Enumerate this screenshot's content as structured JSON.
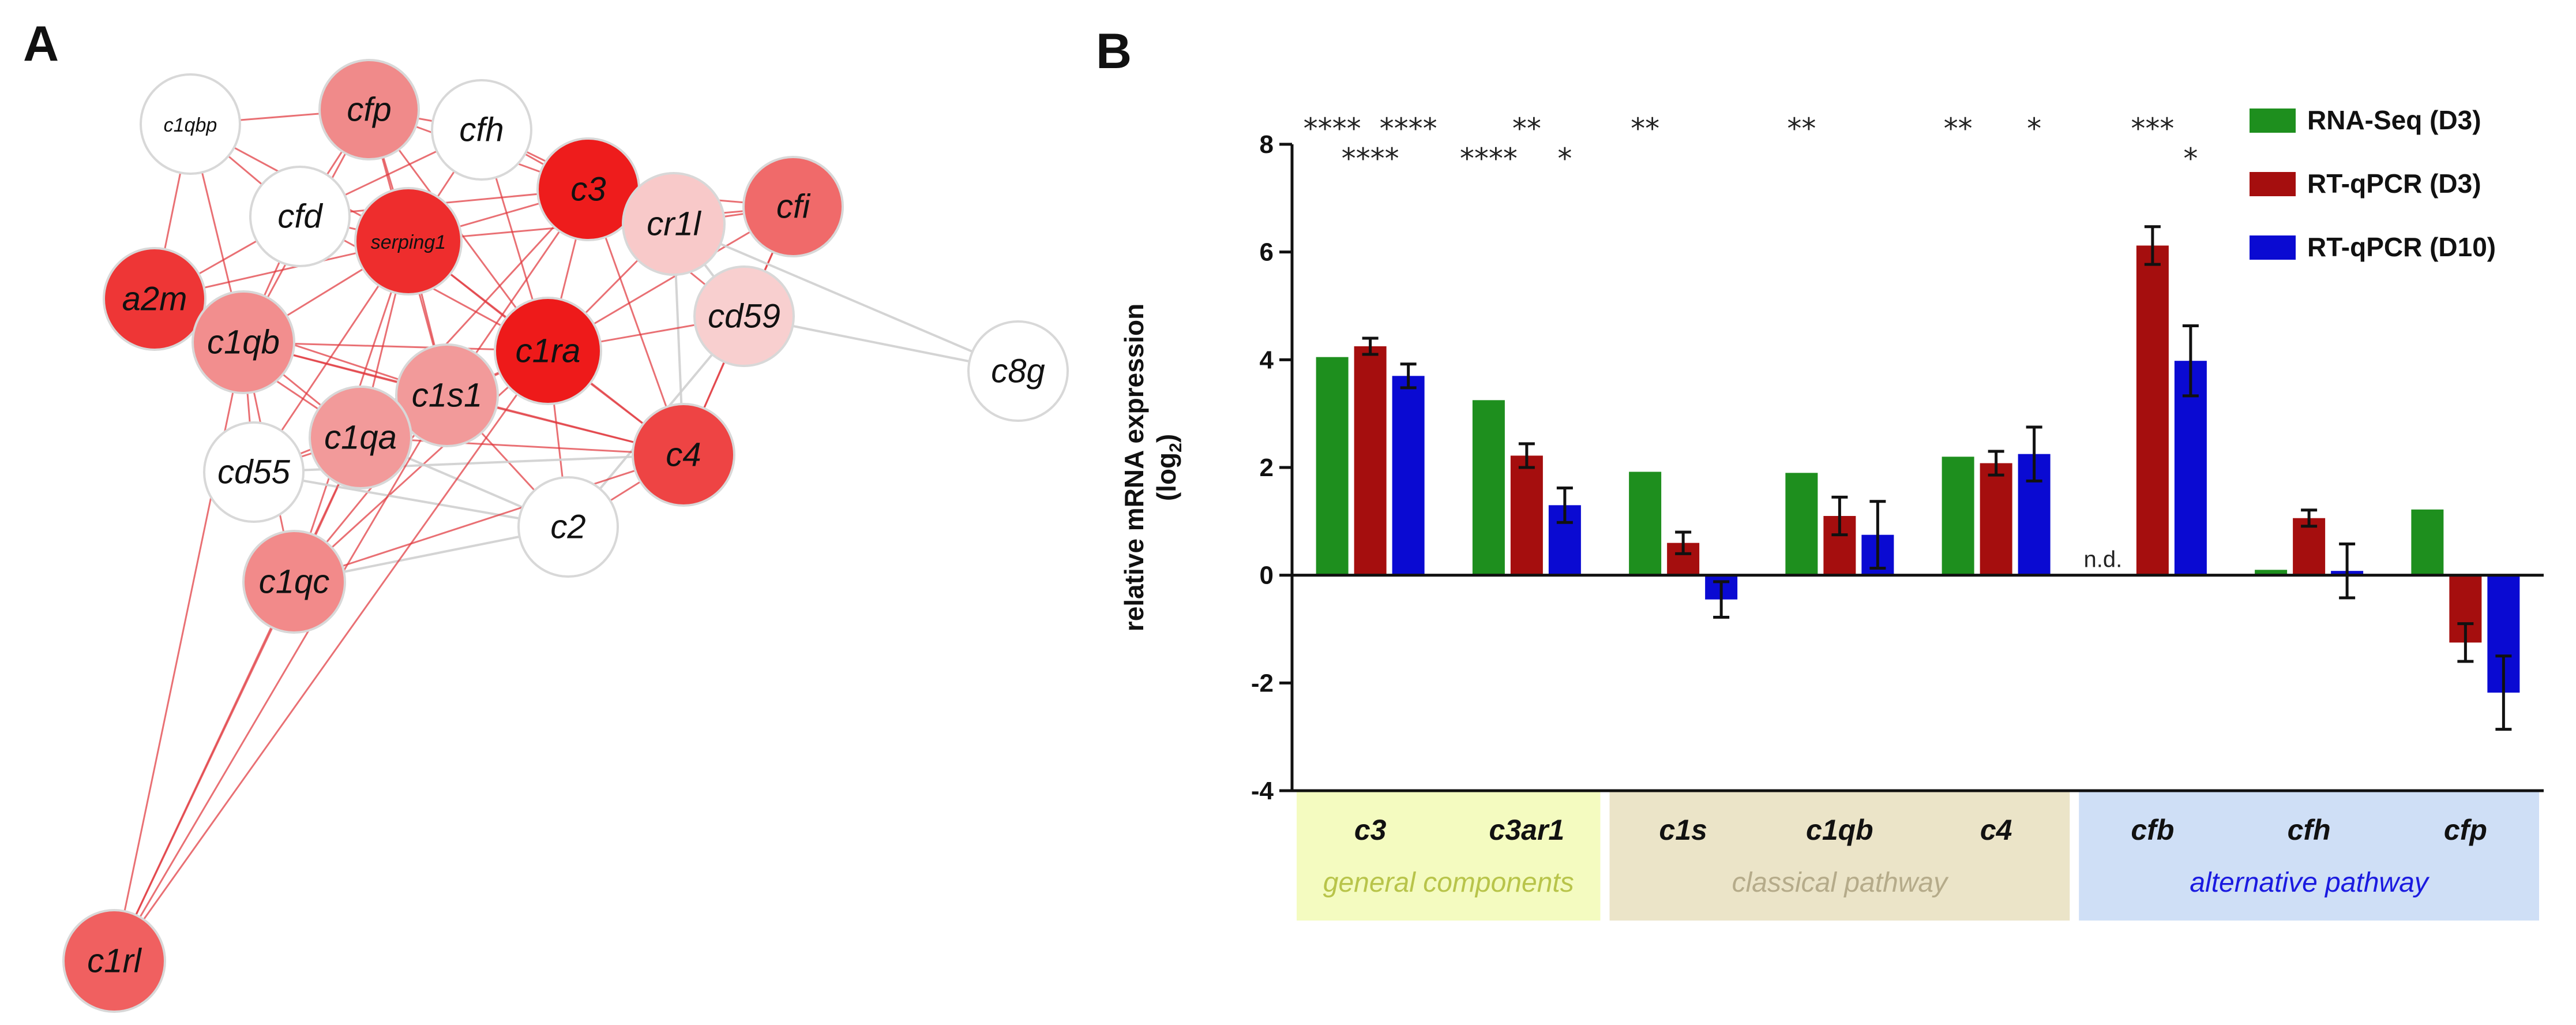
{
  "panel_a": {
    "letter": "A",
    "nodes": [
      {
        "id": "c1qbp",
        "label": "c1qbp",
        "fill": "#ffffff"
      },
      {
        "id": "cfp",
        "label": "cfp",
        "fill": "#f08a8a"
      },
      {
        "id": "cfh",
        "label": "cfh",
        "fill": "#ffffff"
      },
      {
        "id": "c3",
        "label": "c3",
        "fill": "#ee1c1c"
      },
      {
        "id": "cfi",
        "label": "cfi",
        "fill": "#f06a6a"
      },
      {
        "id": "cfd",
        "label": "cfd",
        "fill": "#ffffff"
      },
      {
        "id": "serping1",
        "label": "serping1",
        "fill": "#ee2d2d"
      },
      {
        "id": "cr1l",
        "label": "cr1l",
        "fill": "#f8c9c9"
      },
      {
        "id": "cd59",
        "label": "cd59",
        "fill": "#f8cfcf"
      },
      {
        "id": "a2m",
        "label": "a2m",
        "fill": "#ee3636"
      },
      {
        "id": "c1qb",
        "label": "c1qb",
        "fill": "#f28e8e"
      },
      {
        "id": "c1ra",
        "label": "c1ra",
        "fill": "#ee1a1a"
      },
      {
        "id": "c8g",
        "label": "c8g",
        "fill": "#ffffff"
      },
      {
        "id": "c1s1",
        "label": "c1s1",
        "fill": "#f29a9a"
      },
      {
        "id": "c1qa",
        "label": "c1qa",
        "fill": "#f29a9a"
      },
      {
        "id": "cd55",
        "label": "cd55",
        "fill": "#ffffff"
      },
      {
        "id": "c4",
        "label": "c4",
        "fill": "#ee4444"
      },
      {
        "id": "c2",
        "label": "c2",
        "fill": "#ffffff"
      },
      {
        "id": "c1qc",
        "label": "c1qc",
        "fill": "#f28a8a"
      },
      {
        "id": "c1rl",
        "label": "c1rl",
        "fill": "#f06060"
      }
    ],
    "edges": [
      [
        "c1qbp",
        "cfd",
        "r"
      ],
      [
        "c1qbp",
        "a2m",
        "r"
      ],
      [
        "c1qbp",
        "c1qb",
        "r"
      ],
      [
        "c1qbp",
        "serping1",
        "r"
      ],
      [
        "c1qbp",
        "cfp",
        "r"
      ],
      [
        "cfp",
        "cfd",
        "r"
      ],
      [
        "cfp",
        "serping1",
        "r"
      ],
      [
        "cfp",
        "c3",
        "r"
      ],
      [
        "cfp",
        "c1qb",
        "r"
      ],
      [
        "cfp",
        "c1s1",
        "r"
      ],
      [
        "cfp",
        "cfh",
        "r"
      ],
      [
        "cfp",
        "c1ra",
        "r"
      ],
      [
        "cfh",
        "c3",
        "r"
      ],
      [
        "cfh",
        "serping1",
        "r"
      ],
      [
        "cfh",
        "cfd",
        "r"
      ],
      [
        "cfh",
        "cr1l",
        "r"
      ],
      [
        "cfh",
        "c1ra",
        "r"
      ],
      [
        "c3",
        "serping1",
        "r"
      ],
      [
        "c3",
        "c1ra",
        "r"
      ],
      [
        "c3",
        "cfi",
        "r"
      ],
      [
        "c3",
        "cr1l",
        "r"
      ],
      [
        "c3",
        "c4",
        "r"
      ],
      [
        "c3",
        "c1s1",
        "r"
      ],
      [
        "c3",
        "c1qa",
        "r"
      ],
      [
        "c3",
        "cd59",
        "r"
      ],
      [
        "cfi",
        "cr1l",
        "r"
      ],
      [
        "cfi",
        "cd59",
        "r"
      ],
      [
        "cfi",
        "c1ra",
        "r"
      ],
      [
        "cfi",
        "serping1",
        "r"
      ],
      [
        "cfi",
        "c4",
        "r"
      ],
      [
        "cfd",
        "serping1",
        "r"
      ],
      [
        "cfd",
        "c1qb",
        "r"
      ],
      [
        "cfd",
        "a2m",
        "r"
      ],
      [
        "cfd",
        "c1ra",
        "r"
      ],
      [
        "cfd",
        "c3",
        "r"
      ],
      [
        "serping1",
        "c1ra",
        "r"
      ],
      [
        "serping1",
        "c1qb",
        "r"
      ],
      [
        "serping1",
        "c1qa",
        "r"
      ],
      [
        "serping1",
        "c1s1",
        "r"
      ],
      [
        "serping1",
        "c4",
        "r"
      ],
      [
        "serping1",
        "a2m",
        "r"
      ],
      [
        "serping1",
        "c1qc",
        "r"
      ],
      [
        "serping1",
        "cd55",
        "r"
      ],
      [
        "cr1l",
        "cd59",
        "g"
      ],
      [
        "cr1l",
        "c4",
        "g"
      ],
      [
        "cr1l",
        "c1ra",
        "r"
      ],
      [
        "cd59",
        "c8g",
        "g"
      ],
      [
        "cr1l",
        "c8g",
        "g"
      ],
      [
        "cd59",
        "c4",
        "r"
      ],
      [
        "cd59",
        "c2",
        "g"
      ],
      [
        "cd59",
        "c1ra",
        "r"
      ],
      [
        "a2m",
        "c1qb",
        "r"
      ],
      [
        "a2m",
        "c1qa",
        "r"
      ],
      [
        "a2m",
        "c1s1",
        "r"
      ],
      [
        "c1qb",
        "c1qa",
        "r"
      ],
      [
        "c1qb",
        "c1s1",
        "r"
      ],
      [
        "c1qb",
        "c1ra",
        "r"
      ],
      [
        "c1qb",
        "c4",
        "r"
      ],
      [
        "c1qb",
        "c1qc",
        "r"
      ],
      [
        "c1qb",
        "cd55",
        "r"
      ],
      [
        "c1ra",
        "c1s1",
        "r"
      ],
      [
        "c1ra",
        "c4",
        "r"
      ],
      [
        "c1ra",
        "c1qa",
        "r"
      ],
      [
        "c1ra",
        "c2",
        "r"
      ],
      [
        "c1ra",
        "c1qc",
        "r"
      ],
      [
        "c1s1",
        "c1qa",
        "r"
      ],
      [
        "c1s1",
        "c4",
        "r"
      ],
      [
        "c1s1",
        "c1qc",
        "r"
      ],
      [
        "c1s1",
        "c2",
        "r"
      ],
      [
        "c1s1",
        "cd55",
        "r"
      ],
      [
        "c1qa",
        "c1qc",
        "r"
      ],
      [
        "c1qa",
        "c4",
        "r"
      ],
      [
        "c1qa",
        "c2",
        "g"
      ],
      [
        "c1qa",
        "cd55",
        "r"
      ],
      [
        "cd55",
        "c2",
        "g"
      ],
      [
        "cd55",
        "c4",
        "g"
      ],
      [
        "c2",
        "c4",
        "r"
      ],
      [
        "c1qc",
        "c4",
        "r"
      ],
      [
        "c1qc",
        "c2",
        "g"
      ],
      [
        "c1rl",
        "c1qc",
        "r"
      ],
      [
        "c1rl",
        "c1qa",
        "r"
      ],
      [
        "c1rl",
        "c1s1",
        "r"
      ],
      [
        "c1rl",
        "c1qb",
        "r"
      ],
      [
        "c1rl",
        "c1ra",
        "r"
      ]
    ]
  },
  "panel_b": {
    "letter": "B"
  },
  "chart_data": {
    "type": "bar",
    "ylabel": "relative mRNA expression",
    "ylabel_sub": "(log",
    "ylabel_sub_index": "2",
    "ylabel_close": ")",
    "ylim": [
      -4,
      8
    ],
    "yticks": [
      "-4",
      "-2",
      "0",
      "2",
      "4",
      "6",
      "8"
    ],
    "categories": [
      "c3",
      "c3ar1",
      "c1s",
      "c1qb",
      "c4",
      "cfb",
      "cfh",
      "cfp"
    ],
    "series": [
      {
        "name": "RNA-Seq (D3)",
        "color": "#1e8f1e",
        "values": [
          4.05,
          3.25,
          1.92,
          1.9,
          2.2,
          null,
          0.1,
          1.22
        ],
        "errors": [
          0,
          0,
          0,
          0,
          0,
          null,
          0,
          0
        ]
      },
      {
        "name": "RT-qPCR (D3)",
        "color": "#a50e0e",
        "values": [
          4.25,
          2.22,
          0.6,
          1.1,
          2.08,
          6.12,
          1.06,
          -1.25
        ],
        "errors": [
          0.15,
          0.22,
          0.2,
          0.35,
          0.22,
          0.35,
          0.15,
          0.35
        ]
      },
      {
        "name": "RT-qPCR (D10)",
        "color": "#0a0ad2",
        "values": [
          3.7,
          1.3,
          -0.45,
          0.75,
          2.25,
          3.98,
          0.08,
          -2.18
        ],
        "errors": [
          0.22,
          0.32,
          0.33,
          0.62,
          0.5,
          0.65,
          0.5,
          0.68
        ]
      }
    ],
    "not_detected": [
      {
        "category": "cfb",
        "series": "RNA-Seq (D3)",
        "label": "n.d."
      }
    ],
    "significance": [
      {
        "category": "c3",
        "series": 0,
        "text": "****",
        "row": "top"
      },
      {
        "category": "c3",
        "series": 1,
        "text": "****",
        "row": "low"
      },
      {
        "category": "c3",
        "series": 2,
        "text": "****",
        "row": "top"
      },
      {
        "category": "c3ar1",
        "series": 0,
        "text": "****",
        "row": "low"
      },
      {
        "category": "c3ar1",
        "series": 1,
        "text": "**",
        "row": "top"
      },
      {
        "category": "c3ar1",
        "series": 2,
        "text": "*",
        "row": "low"
      },
      {
        "category": "c1s",
        "series": 0,
        "text": "**",
        "row": "top"
      },
      {
        "category": "c1qb",
        "series": 0,
        "text": "**",
        "row": "top"
      },
      {
        "category": "c4",
        "series": 0,
        "text": "**",
        "row": "top"
      },
      {
        "category": "c4",
        "series": 2,
        "text": "*",
        "row": "top"
      },
      {
        "category": "cfb",
        "series": 1,
        "text": "***",
        "row": "top"
      },
      {
        "category": "cfb",
        "series": 2,
        "text": "*",
        "row": "low"
      }
    ],
    "groups": [
      {
        "label": "general components",
        "categories": [
          "c3",
          "c3ar1"
        ],
        "fill": "#f4fbc0",
        "text_color": "#b8c44a"
      },
      {
        "label": "classical pathway",
        "categories": [
          "c1s",
          "c1qb",
          "c4"
        ],
        "fill": "#ebe4c8",
        "text_color": "#b5ab8a"
      },
      {
        "label": "alternative pathway",
        "categories": [
          "cfb",
          "cfh",
          "cfp"
        ],
        "fill": "#cfdff6",
        "text_color": "#1a1ae0"
      }
    ],
    "legend_position": "top-right"
  }
}
